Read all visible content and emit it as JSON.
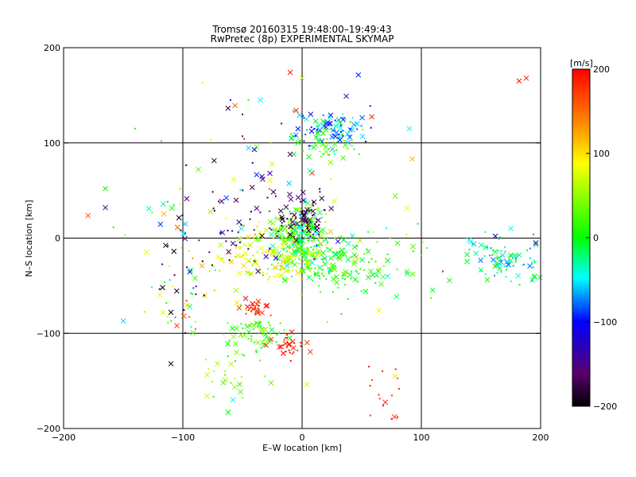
{
  "chart_data": {
    "type": "scatter",
    "title": "Tromsø 20160315 19:48:00–19:49:43",
    "subtitle": "RwPretec (8p) EXPERIMENTAL SKYMAP",
    "xlabel": "E–W location [km]",
    "ylabel": "N–S location [km]",
    "xlim": [
      -200,
      200
    ],
    "ylim": [
      -200,
      200
    ],
    "xticks": [
      -200,
      -100,
      0,
      100,
      200
    ],
    "yticks": [
      -200,
      -100,
      0,
      100,
      200
    ],
    "grid": true,
    "colorbar": {
      "label": "[m/s]",
      "range": [
        -200,
        200
      ],
      "ticks": [
        200,
        100,
        0,
        -100,
        -200
      ],
      "colormap": [
        "#000000",
        "#5a0070",
        "#0000ff",
        "#00ffff",
        "#00ff00",
        "#ffff00",
        "#ff8000",
        "#ff0000"
      ]
    },
    "markers": {
      "large": "x",
      "small": "dot"
    },
    "clusters": [
      {
        "cx": 0,
        "cy": 0,
        "sx": 12,
        "sy": 18,
        "n": 260,
        "vmin": -60,
        "vmax": 80
      },
      {
        "cx": 2,
        "cy": 20,
        "sx": 10,
        "sy": 12,
        "n": 70,
        "vmin": -200,
        "vmax": -150
      },
      {
        "cx": -25,
        "cy": -20,
        "sx": 25,
        "sy": 15,
        "n": 140,
        "vmin": 40,
        "vmax": 120
      },
      {
        "cx": 28,
        "cy": -30,
        "sx": 25,
        "sy": 15,
        "n": 110,
        "vmin": -20,
        "vmax": 40
      },
      {
        "cx": 25,
        "cy": 115,
        "sx": 15,
        "sy": 10,
        "n": 90,
        "vmin": -110,
        "vmax": -40
      },
      {
        "cx": 20,
        "cy": 100,
        "sx": 15,
        "sy": 12,
        "n": 50,
        "vmin": -10,
        "vmax": 40
      },
      {
        "cx": -55,
        "cy": 20,
        "sx": 30,
        "sy": 25,
        "n": 60,
        "vmin": -200,
        "vmax": -120
      },
      {
        "cx": 170,
        "cy": -25,
        "sx": 18,
        "sy": 12,
        "n": 90,
        "vmin": -80,
        "vmax": 10
      },
      {
        "cx": -40,
        "cy": -100,
        "sx": 15,
        "sy": 12,
        "n": 70,
        "vmin": -10,
        "vmax": 50
      },
      {
        "cx": -38,
        "cy": -75,
        "sx": 7,
        "sy": 5,
        "n": 25,
        "vmin": 170,
        "vmax": 200
      },
      {
        "cx": -10,
        "cy": -112,
        "sx": 8,
        "sy": 6,
        "n": 30,
        "vmin": 165,
        "vmax": 200
      },
      {
        "cx": -100,
        "cy": -60,
        "sx": 15,
        "sy": 35,
        "n": 45,
        "vmin": -200,
        "vmax": 180
      },
      {
        "cx": -60,
        "cy": -150,
        "sx": 15,
        "sy": 15,
        "n": 25,
        "vmin": 10,
        "vmax": 80
      },
      {
        "cx": 60,
        "cy": -25,
        "sx": 30,
        "sy": 25,
        "n": 40,
        "vmin": -60,
        "vmax": 100
      },
      {
        "cx": -30,
        "cy": 80,
        "sx": 40,
        "sy": 45,
        "n": 35,
        "vmin": -200,
        "vmax": 200
      },
      {
        "cx": 70,
        "cy": -165,
        "sx": 10,
        "sy": 15,
        "n": 12,
        "vmin": 160,
        "vmax": 200
      },
      {
        "cx": -90,
        "cy": 20,
        "sx": 45,
        "sy": 35,
        "n": 35,
        "vmin": -120,
        "vmax": 160
      }
    ],
    "points": [
      {
        "x": -165,
        "y": 52,
        "v": 0,
        "m": "x"
      },
      {
        "x": -165,
        "y": 32,
        "v": -150,
        "m": "x"
      },
      {
        "x": -150,
        "y": -87,
        "v": -60,
        "m": "x"
      },
      {
        "x": -140,
        "y": 115,
        "v": 10,
        "m": "dot"
      },
      {
        "x": -118,
        "y": 102,
        "v": 10,
        "m": "dot"
      },
      {
        "x": -117,
        "y": -52,
        "v": -200,
        "m": "x"
      },
      {
        "x": -110,
        "y": -132,
        "v": -200,
        "m": "x"
      },
      {
        "x": -110,
        "y": -78,
        "v": -200,
        "m": "x"
      },
      {
        "x": -105,
        "y": -92,
        "v": 180,
        "m": "x"
      },
      {
        "x": -87,
        "y": 72,
        "v": 30,
        "m": "x"
      },
      {
        "x": -10,
        "y": 174,
        "v": 190,
        "m": "x"
      },
      {
        "x": -5,
        "y": 134,
        "v": 185,
        "m": "x"
      },
      {
        "x": 37,
        "y": 149,
        "v": -130,
        "m": "x"
      },
      {
        "x": 182,
        "y": 165,
        "v": 190,
        "m": "x"
      },
      {
        "x": 188,
        "y": 168,
        "v": 190,
        "m": "x"
      },
      {
        "x": 90,
        "y": 115,
        "v": -50,
        "m": "x"
      },
      {
        "x": 78,
        "y": -145,
        "v": 100,
        "m": "x"
      },
      {
        "x": 75,
        "y": -190,
        "v": 190,
        "m": "dot"
      },
      {
        "x": 80,
        "y": -188,
        "v": 190,
        "m": "dot"
      },
      {
        "x": 56,
        "y": -135,
        "v": 190,
        "m": "dot"
      },
      {
        "x": 57,
        "y": -155,
        "v": 190,
        "m": "dot"
      },
      {
        "x": 118,
        "y": -35,
        "v": 190,
        "m": "dot"
      },
      {
        "x": 108,
        "y": -63,
        "v": 30,
        "m": "dot"
      },
      {
        "x": -58,
        "y": -170,
        "v": -40,
        "m": "x"
      },
      {
        "x": -62,
        "y": -183,
        "v": 0,
        "m": "x"
      },
      {
        "x": -45,
        "y": 145,
        "v": 10,
        "m": "dot"
      },
      {
        "x": -60,
        "y": 145,
        "v": -120,
        "m": "dot"
      },
      {
        "x": -50,
        "y": 130,
        "v": -150,
        "m": "dot"
      },
      {
        "x": -35,
        "y": 145,
        "v": -50,
        "m": "x"
      },
      {
        "x": -50,
        "y": 107,
        "v": -150,
        "m": "dot"
      },
      {
        "x": -40,
        "y": 93,
        "v": -110,
        "m": "x"
      },
      {
        "x": -10,
        "y": 88,
        "v": -170,
        "m": "x"
      },
      {
        "x": 162,
        "y": 2,
        "v": -120,
        "m": "x"
      },
      {
        "x": 175,
        "y": 10,
        "v": -50,
        "m": "x"
      },
      {
        "x": 196,
        "y": -5,
        "v": -120,
        "m": "x"
      },
      {
        "x": 140,
        "y": -2,
        "v": -50,
        "m": "x"
      },
      {
        "x": 195,
        "y": -40,
        "v": 10,
        "m": "x"
      },
      {
        "x": 97,
        "y": 15,
        "v": 0,
        "m": "dot"
      }
    ]
  }
}
